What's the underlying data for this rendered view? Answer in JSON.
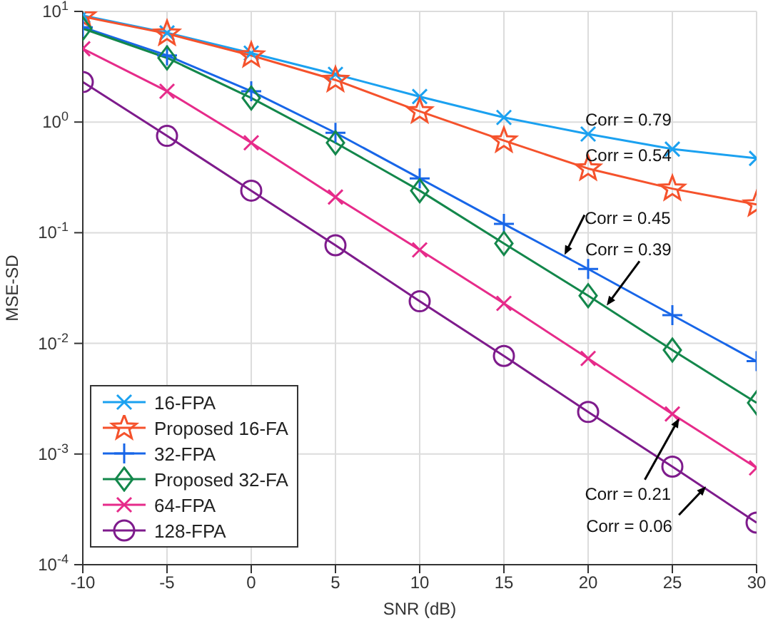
{
  "chart_data": {
    "type": "line",
    "xlabel": "SNR (dB)",
    "ylabel": "MSE-SD",
    "x": [
      -10,
      -5,
      0,
      5,
      10,
      15,
      20,
      25,
      30
    ],
    "xlim": [
      -10,
      30
    ],
    "xticks": [
      -10,
      -5,
      0,
      5,
      10,
      15,
      20,
      25,
      30
    ],
    "log": "y",
    "ylim": [
      0.0001,
      10
    ],
    "yticks": [
      {
        "value": 0.0001,
        "label": "10$^{-4}$"
      },
      {
        "value": 0.001,
        "label": "10$^{-3}$"
      },
      {
        "value": 0.01,
        "label": "10$^{-2}$"
      },
      {
        "value": 0.1,
        "label": "10$^{-1}$"
      },
      {
        "value": 1,
        "label": "10$^{0}$"
      },
      {
        "value": 10,
        "label": "10$^{1}$"
      }
    ],
    "grid": true,
    "legend": "bottom left",
    "line_style": "solid",
    "series": [
      {
        "name": "16-FPA",
        "color": "#1ba1f0",
        "marker": "cross",
        "values": [
          9.2,
          6.4,
          4.2,
          2.7,
          1.7,
          1.1,
          0.78,
          0.57,
          0.47
        ]
      },
      {
        "name": "Proposed 16-FA",
        "color": "#f5522c",
        "marker": "star",
        "values": [
          9.0,
          6.3,
          4.0,
          2.4,
          1.25,
          0.68,
          0.38,
          0.25,
          0.18
        ]
      },
      {
        "name": "32-FPA",
        "color": "#1866e8",
        "marker": "plus",
        "values": [
          7.2,
          4.0,
          1.9,
          0.8,
          0.31,
          0.12,
          0.047,
          0.018,
          0.0069
        ]
      },
      {
        "name": "Proposed 32-FA",
        "color": "#13874b",
        "marker": "diamond",
        "values": [
          7.0,
          3.8,
          1.65,
          0.65,
          0.24,
          0.08,
          0.027,
          0.0087,
          0.0029
        ]
      },
      {
        "name": "64-FPA",
        "color": "#e62b8a",
        "marker": "cross",
        "values": [
          4.6,
          1.9,
          0.65,
          0.21,
          0.07,
          0.023,
          0.0073,
          0.0023,
          0.00075
        ]
      },
      {
        "name": "128-FPA",
        "color": "#7e1b8c",
        "marker": "circle",
        "values": [
          2.3,
          0.75,
          0.24,
          0.077,
          0.024,
          0.0077,
          0.0024,
          0.00077,
          0.00024
        ]
      }
    ],
    "annotations": [
      {
        "text": "Corr = 0.79",
        "x": 20,
        "y": 0.78
      },
      {
        "text": "Corr = 0.54",
        "x": 20,
        "y": 0.38
      },
      {
        "text": "Corr = 0.45",
        "x": 18.6,
        "y": 0.063
      },
      {
        "text": "Corr = 0.39",
        "x": 21.1,
        "y": 0.022
      },
      {
        "text": "Corr = 0.21",
        "x": 25.4,
        "y": 0.0021
      },
      {
        "text": "Corr = 0.06",
        "x": 27,
        "y": 0.00051
      }
    ]
  }
}
